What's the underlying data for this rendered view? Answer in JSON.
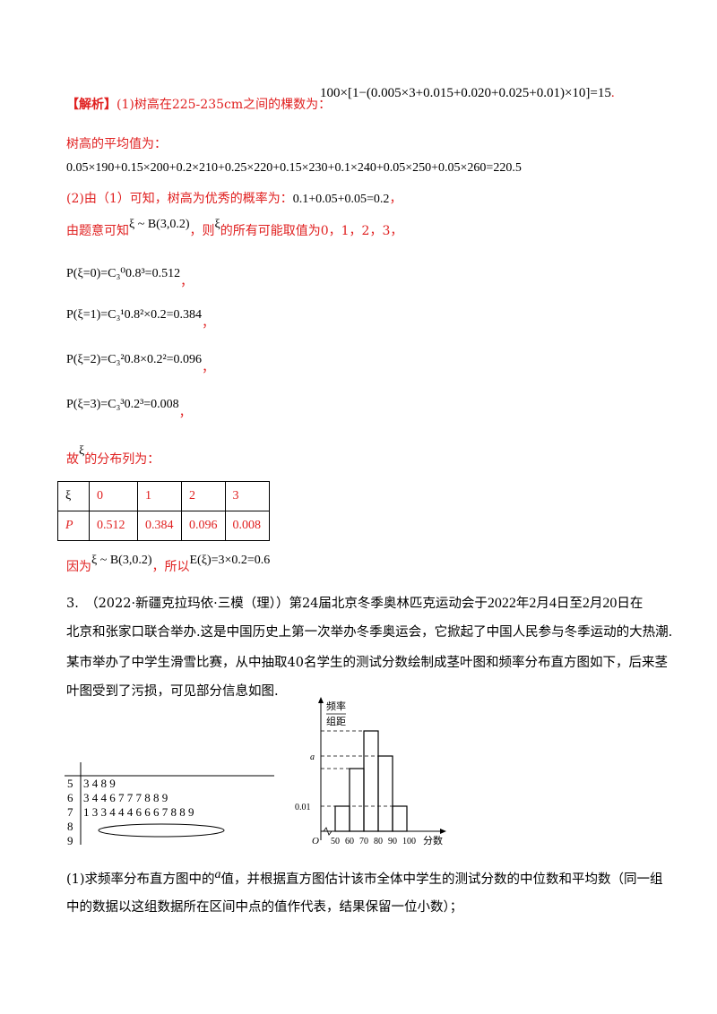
{
  "solution": {
    "tag": "【解析】",
    "part1_label": "(1)树高在225-235cm之间的棵数为：",
    "part1_formula": "100×[1−(0.005×3+0.015+0.020+0.025+0.01)×10]=15",
    "part1_end": ".",
    "mean_label": "树高的平均值为：",
    "mean_formula": "0.05×190+0.15×200+0.2×210+0.25×220+0.15×230+0.1×240+0.05×250+0.05×260=220.5",
    "part2_label": "(2)由（1）可知，树高为优秀的概率为：",
    "part2_formula": "0.1+0.05+0.05=0.2",
    "part2_end": "，",
    "dist_prefix": "由题意可知",
    "dist_formula": "ξ ~ B(3,0.2)",
    "dist_mid": "，则",
    "dist_xi": "ξ",
    "dist_suffix": "的所有可能取值为0，1，2，3，",
    "probs": [
      {
        "lhs": "P(ξ=0)=",
        "rhs": "C₃⁰0.8³=0.512",
        "end": "，"
      },
      {
        "lhs": "P(ξ=1)=",
        "rhs": "C₃¹0.8²×0.2=0.384",
        "end": "，"
      },
      {
        "lhs": "P(ξ=2)=",
        "rhs": "C₃²0.8×0.2²=0.096",
        "end": "，"
      },
      {
        "lhs": "P(ξ=3)=",
        "rhs": "C₃³0.2³=0.008",
        "end": "，"
      }
    ],
    "gu": "故",
    "gu_xi": "ξ",
    "gu_suffix": "的分布列为：",
    "table": {
      "row1": [
        "ξ",
        "0",
        "1",
        "2",
        "3"
      ],
      "row2": [
        "P",
        "0.512",
        "0.384",
        "0.096",
        "0.008"
      ]
    },
    "because": "因为",
    "because_formula": "ξ ~ B(3,0.2)",
    "so": "，所以",
    "expect_formula": "E(ξ)=3×0.2=0.6"
  },
  "question3": {
    "line1a": "3.　（2022·新疆克拉玛依·三模（理））第24届北京冬季奥林匹克运动会于",
    "year": "2022",
    "line1b": "年",
    "m1": "2",
    "line1c": "月",
    "d1": "4",
    "line1d": "日至",
    "m2": "2",
    "line1e": "月",
    "d2": "20",
    "line1f": "日在",
    "line2": "北京和张家口联合举办.这是中国历史上第一次举办冬季奥运会，它掀起了中国人民参与冬季运动的大热潮.",
    "line3": "某市举办了中学生滑雪比赛，从中抽取40名学生的测试分数绘制成茎叶图和频率分布直方图如下，后来茎",
    "line4": "叶图受到了污损，可见部分信息如图.",
    "sub1_a": "(1)求频率分布直方图中的",
    "sub1_var": "a",
    "sub1_b": "值，并根据直方图估计该市全体中学生的测试分数的中位数和平均数（同一组",
    "sub1_line2": "中的数据以这组数据所在区间中点的值作代表，结果保留一位小数）；"
  },
  "stem_leaf": {
    "stems": [
      "5",
      "6",
      "7",
      "8",
      "9"
    ],
    "leaves": [
      "3 4 8 9",
      "3 4 4 6 7 7 7 8 8 9",
      "1 3 3 4 4 4 6 6 6 7 8 8 9",
      "",
      ""
    ]
  },
  "chart_data": {
    "type": "bar",
    "categories": [
      "50-60",
      "60-70",
      "70-80",
      "80-90",
      "90-100"
    ],
    "values_relative": [
      0.01,
      0.025,
      0.04,
      0.03,
      0.01
    ],
    "ylabel_top": "频率",
    "ylabel_bottom": "组距",
    "xlabel": "分数",
    "origin": "O",
    "x_ticks": [
      "50",
      "60",
      "70",
      "80",
      "90",
      "100"
    ],
    "y_ticks": [
      "0.01",
      "a"
    ]
  }
}
